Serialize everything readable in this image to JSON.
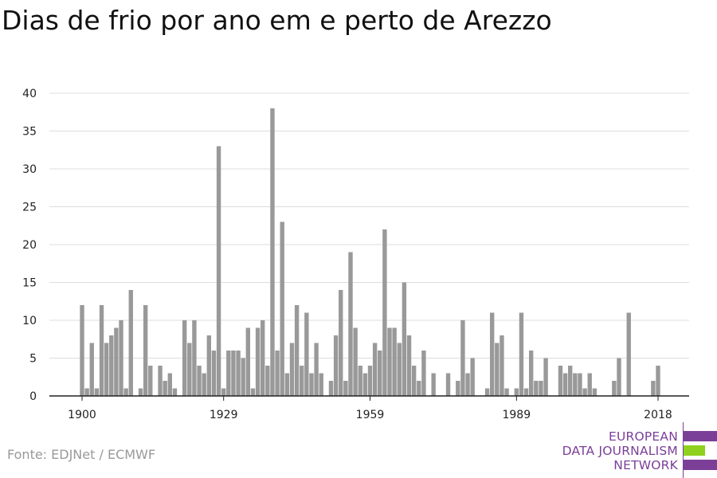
{
  "title": "Dias de frio por ano em e perto de Arezzo",
  "source": "Fonte: EDJNet / ECMWF",
  "logo": {
    "line1": "EUROPEAN",
    "line2": "DATA JOURNALISM",
    "line3": "NETWORK",
    "colors": {
      "purple": "#7b3f98",
      "green": "#8fd11e"
    }
  },
  "chart_data": {
    "type": "bar",
    "title": "Dias de frio por ano em e perto de Arezzo",
    "xlabel": "",
    "ylabel": "",
    "bar_color": "#999999",
    "grid": true,
    "ylim": [
      0,
      40
    ],
    "yticks": [
      0,
      5,
      10,
      15,
      20,
      25,
      30,
      35,
      40
    ],
    "xticks": [
      1900,
      1929,
      1959,
      1989,
      2018
    ],
    "x": [
      1900,
      1901,
      1902,
      1903,
      1904,
      1905,
      1906,
      1907,
      1908,
      1909,
      1910,
      1911,
      1912,
      1913,
      1914,
      1915,
      1916,
      1917,
      1918,
      1919,
      1920,
      1921,
      1922,
      1923,
      1924,
      1925,
      1926,
      1927,
      1928,
      1929,
      1930,
      1931,
      1932,
      1933,
      1934,
      1935,
      1936,
      1937,
      1938,
      1939,
      1940,
      1941,
      1942,
      1943,
      1944,
      1945,
      1946,
      1947,
      1948,
      1949,
      1950,
      1951,
      1952,
      1953,
      1954,
      1955,
      1956,
      1957,
      1958,
      1959,
      1960,
      1961,
      1962,
      1963,
      1964,
      1965,
      1966,
      1967,
      1968,
      1969,
      1970,
      1971,
      1972,
      1973,
      1974,
      1975,
      1976,
      1977,
      1978,
      1979,
      1980,
      1981,
      1982,
      1983,
      1984,
      1985,
      1986,
      1987,
      1988,
      1989,
      1990,
      1991,
      1992,
      1993,
      1994,
      1995,
      1996,
      1997,
      1998,
      1999,
      2000,
      2001,
      2002,
      2003,
      2004,
      2005,
      2006,
      2007,
      2008,
      2009,
      2010,
      2011,
      2012,
      2013,
      2014,
      2015,
      2016,
      2017,
      2018
    ],
    "values": [
      12,
      1,
      7,
      1,
      12,
      7,
      8,
      9,
      10,
      1,
      14,
      0,
      1,
      12,
      4,
      0,
      4,
      2,
      3,
      1,
      0,
      10,
      7,
      10,
      4,
      3,
      8,
      6,
      33,
      1,
      6,
      6,
      6,
      5,
      9,
      1,
      9,
      10,
      4,
      38,
      6,
      23,
      3,
      7,
      12,
      4,
      11,
      3,
      7,
      3,
      0,
      2,
      8,
      14,
      2,
      19,
      9,
      4,
      3,
      4,
      7,
      6,
      22,
      9,
      9,
      7,
      15,
      8,
      4,
      2,
      6,
      0,
      3,
      0,
      0,
      3,
      0,
      2,
      10,
      3,
      5,
      0,
      0,
      1,
      11,
      7,
      8,
      1,
      0,
      1,
      11,
      1,
      6,
      2,
      2,
      5,
      0,
      0,
      4,
      3,
      4,
      3,
      3,
      1,
      3,
      1,
      0,
      0,
      0,
      2,
      5,
      0,
      11,
      0,
      0,
      0,
      0,
      2,
      4
    ]
  }
}
